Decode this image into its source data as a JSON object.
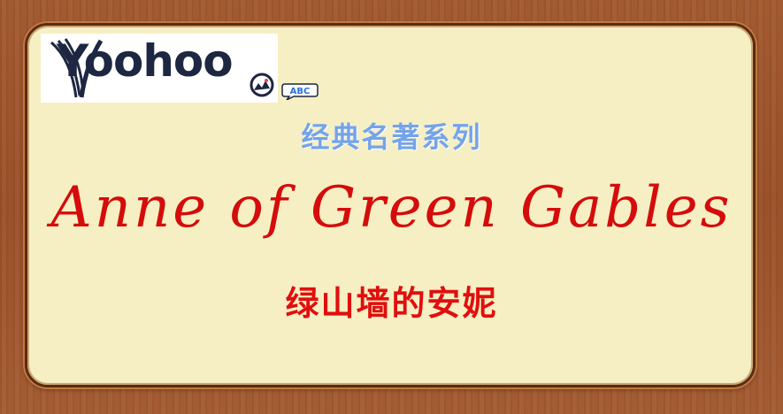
{
  "logo": {
    "brand_text": "Yoohoo",
    "badge_text": "ABC"
  },
  "series_title": "经典名著系列",
  "english_title": "Anne of Green  Gables",
  "chinese_title": "绿山墙的安妮",
  "colors": {
    "frame": "#9b5129",
    "panel": "#f6efc3",
    "series_title": "#74a3ea",
    "title_red": "#d40c0c",
    "logo_navy": "#1d2741"
  }
}
